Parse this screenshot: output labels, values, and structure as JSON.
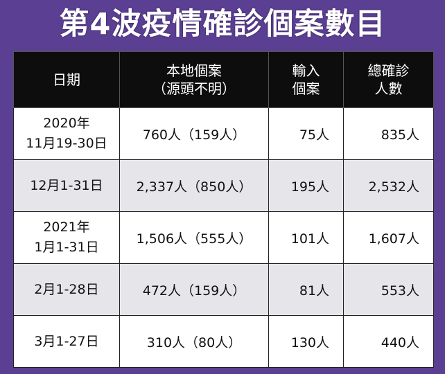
{
  "title": "第4波疫情確診個案數目",
  "table": {
    "headers": {
      "date": "日期",
      "local_line1": "本地個案",
      "local_line2": "（源頭不明）",
      "imported_line1": "輸入",
      "imported_line2": "個案",
      "total_line1": "總確診",
      "total_line2": "人數"
    },
    "rows": [
      {
        "date_line1": "2020年",
        "date_line2": "11月19-30日",
        "local": "760人（159人）",
        "imported": "75人",
        "total": "835人"
      },
      {
        "date_line1": "12月1-31日",
        "date_line2": "",
        "local": "2,337人（850人）",
        "imported": "195人",
        "total": "2,532人"
      },
      {
        "date_line1": "2021年",
        "date_line2": "1月1-31日",
        "local": "1,506人（555人）",
        "imported": "101人",
        "total": "1,607人"
      },
      {
        "date_line1": "2月1-28日",
        "date_line2": "",
        "local": "472人（159人）",
        "imported": "81人",
        "total": "553人"
      },
      {
        "date_line1": "3月1-27日",
        "date_line2": "",
        "local": "310人（80人）",
        "imported": "130人",
        "total": "440人"
      }
    ]
  },
  "colors": {
    "frame": "#5b3f93",
    "header_bg": "#0d0d0d",
    "stripe": "#e6e6ea"
  }
}
